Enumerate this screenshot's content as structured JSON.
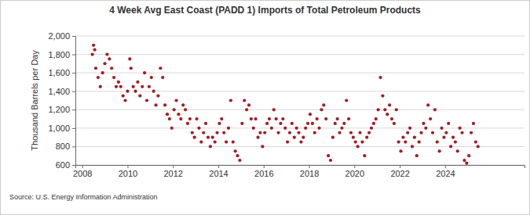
{
  "chart_data": {
    "type": "scatter",
    "title": "4 Week Avg East Coast (PADD 1) Imports of Total Petroleum Products",
    "y_label": "Thousand Barrels per Day",
    "source": "Source: U.S. Energy Information Administration",
    "color": "#a51c24",
    "marker": "circle",
    "grid": true,
    "xlim": [
      2007.7,
      2027.5
    ],
    "xticks": [
      2008,
      2010,
      2012,
      2014,
      2016,
      2018,
      2020,
      2022,
      2024
    ],
    "ylim": [
      600,
      2000
    ],
    "yticks": [
      600,
      800,
      {
        "value": 1000,
        "label": "1,000"
      },
      {
        "value": 1200,
        "label": "1,200"
      },
      {
        "value": 1400,
        "label": "1,400"
      },
      {
        "value": 1600,
        "label": "1,600"
      },
      {
        "value": 1800,
        "label": "1,800"
      },
      {
        "value": 2000,
        "label": "2,000"
      }
    ],
    "x": [
      2008.45,
      2008.5,
      2008.55,
      2008.6,
      2008.7,
      2008.8,
      2008.9,
      2009.0,
      2009.1,
      2009.2,
      2009.3,
      2009.4,
      2009.5,
      2009.6,
      2009.7,
      2009.8,
      2009.9,
      2010.0,
      2010.1,
      2010.15,
      2010.25,
      2010.35,
      2010.45,
      2010.55,
      2010.65,
      2010.75,
      2010.85,
      2010.95,
      2011.05,
      2011.15,
      2011.25,
      2011.35,
      2011.45,
      2011.55,
      2011.65,
      2011.75,
      2011.85,
      2011.95,
      2012.05,
      2012.15,
      2012.25,
      2012.35,
      2012.45,
      2012.55,
      2012.65,
      2012.75,
      2012.85,
      2012.95,
      2013.05,
      2013.15,
      2013.25,
      2013.35,
      2013.45,
      2013.55,
      2013.65,
      2013.75,
      2013.85,
      2013.95,
      2014.05,
      2014.15,
      2014.25,
      2014.35,
      2014.45,
      2014.55,
      2014.65,
      2014.75,
      2014.85,
      2014.95,
      2015.05,
      2015.15,
      2015.25,
      2015.35,
      2015.45,
      2015.55,
      2015.65,
      2015.75,
      2015.85,
      2015.95,
      2016.05,
      2016.15,
      2016.25,
      2016.35,
      2016.45,
      2016.55,
      2016.65,
      2016.75,
      2016.85,
      2016.95,
      2017.05,
      2017.15,
      2017.25,
      2017.35,
      2017.45,
      2017.55,
      2017.65,
      2017.75,
      2017.85,
      2017.95,
      2018.05,
      2018.15,
      2018.25,
      2018.35,
      2018.45,
      2018.55,
      2018.65,
      2018.75,
      2018.85,
      2018.95,
      2019.05,
      2019.15,
      2019.25,
      2019.35,
      2019.45,
      2019.55,
      2019.65,
      2019.75,
      2019.85,
      2019.95,
      2020.05,
      2020.15,
      2020.25,
      2020.35,
      2020.45,
      2020.55,
      2020.65,
      2020.75,
      2020.85,
      2020.95,
      2021.05,
      2021.15,
      2021.25,
      2021.35,
      2021.45,
      2021.55,
      2021.65,
      2021.75,
      2021.85,
      2021.95,
      2022.05,
      2022.15,
      2022.25,
      2022.35,
      2022.45,
      2022.55,
      2022.65,
      2022.75,
      2022.85,
      2022.95,
      2023.05,
      2023.15,
      2023.25,
      2023.35,
      2023.45,
      2023.55,
      2023.65,
      2023.75,
      2023.85,
      2023.95,
      2024.05,
      2024.15,
      2024.25,
      2024.35,
      2024.45,
      2024.55,
      2024.65,
      2024.75,
      2024.85,
      2024.95,
      2025.05,
      2025.15,
      2025.25,
      2025.35,
      2025.45
    ],
    "values": [
      1800,
      1900,
      1850,
      1650,
      1550,
      1450,
      1600,
      1700,
      1800,
      1750,
      1650,
      1550,
      1450,
      1500,
      1450,
      1350,
      1300,
      1400,
      1750,
      1650,
      1450,
      1400,
      1500,
      1350,
      1450,
      1600,
      1300,
      1450,
      1550,
      1400,
      1250,
      1350,
      1650,
      1550,
      1250,
      1150,
      1100,
      1000,
      1200,
      1300,
      1150,
      1100,
      1250,
      1200,
      1050,
      1100,
      950,
      900,
      1100,
      1000,
      850,
      950,
      1050,
      900,
      800,
      900,
      850,
      950,
      1050,
      1100,
      950,
      850,
      1000,
      1300,
      850,
      750,
      700,
      650,
      1050,
      1300,
      1200,
      1250,
      1100,
      1000,
      1100,
      900,
      950,
      800,
      950,
      1050,
      1100,
      1000,
      1200,
      1100,
      950,
      1050,
      1100,
      1000,
      850,
      950,
      1050,
      900,
      1000,
      950,
      850,
      900,
      1000,
      1050,
      1150,
      1050,
      950,
      1100,
      1000,
      1200,
      1250,
      1100,
      700,
      650,
      900,
      1050,
      1100,
      950,
      1000,
      1050,
      1300,
      1100,
      950,
      900,
      850,
      800,
      950,
      850,
      700,
      900,
      950,
      1000,
      1050,
      1100,
      1200,
      1550,
      1350,
      1200,
      1150,
      1250,
      1100,
      1050,
      1200,
      850,
      750,
      900,
      850,
      950,
      1000,
      800,
      900,
      700,
      850,
      950,
      1050,
      1000,
      1250,
      1100,
      950,
      1200,
      850,
      750,
      1000,
      900,
      950,
      1050,
      800,
      900,
      850,
      750,
      1000,
      950,
      650,
      620,
      700,
      950,
      1050,
      850,
      800
    ]
  }
}
